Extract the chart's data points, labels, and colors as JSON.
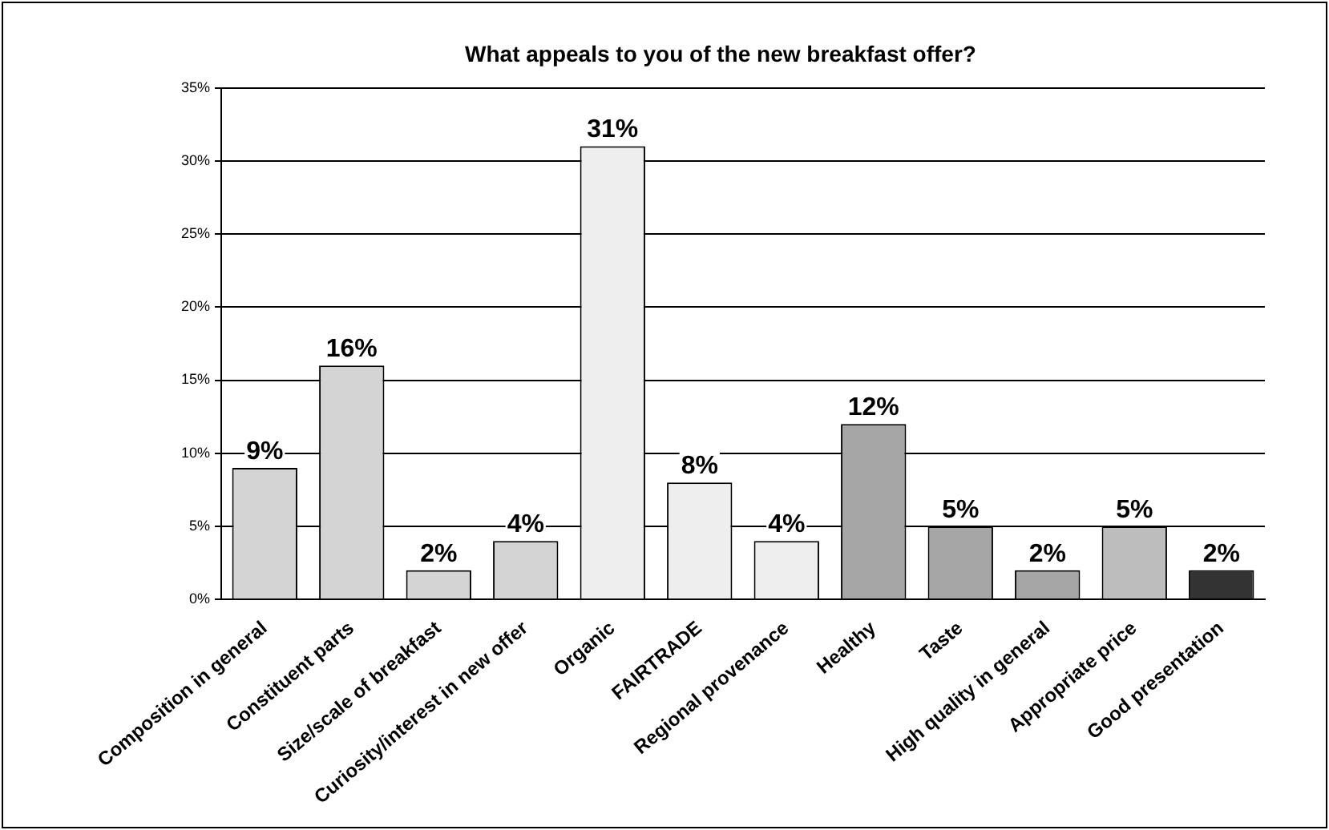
{
  "chart_data": {
    "type": "bar",
    "title": "What appeals to you of the new breakfast offer?",
    "categories": [
      "Composition in general",
      "Constituent parts",
      "Size/scale of breakfast",
      "Curiosity/interest in new offer",
      "Organic",
      "FAIRTRADE",
      "Regional provenance",
      "Healthy",
      "Taste",
      "High quality in general",
      "Appropriate price",
      "Good presentation"
    ],
    "values": [
      9,
      16,
      2,
      4,
      31,
      8,
      4,
      12,
      5,
      2,
      5,
      2
    ],
    "value_labels": [
      "9%",
      "16%",
      "2%",
      "4%",
      "31%",
      "8%",
      "4%",
      "12%",
      "5%",
      "2%",
      "5%",
      "2%"
    ],
    "colors": [
      "#d4d4d4",
      "#d4d4d4",
      "#d4d4d4",
      "#d4d4d4",
      "#eeeeee",
      "#eeeeee",
      "#eeeeee",
      "#a6a6a6",
      "#a6a6a6",
      "#a6a6a6",
      "#bdbdbd",
      "#333333"
    ],
    "ylim": [
      0,
      35
    ],
    "yticks": [
      {
        "value": 0,
        "label": "0%"
      },
      {
        "value": 5,
        "label": "5%"
      },
      {
        "value": 10,
        "label": "10%"
      },
      {
        "value": 15,
        "label": "15%"
      },
      {
        "value": 20,
        "label": "20%"
      },
      {
        "value": 25,
        "label": "25%"
      },
      {
        "value": 30,
        "label": "30%"
      },
      {
        "value": 35,
        "label": "35%"
      }
    ],
    "grid": "y",
    "legend": false
  }
}
